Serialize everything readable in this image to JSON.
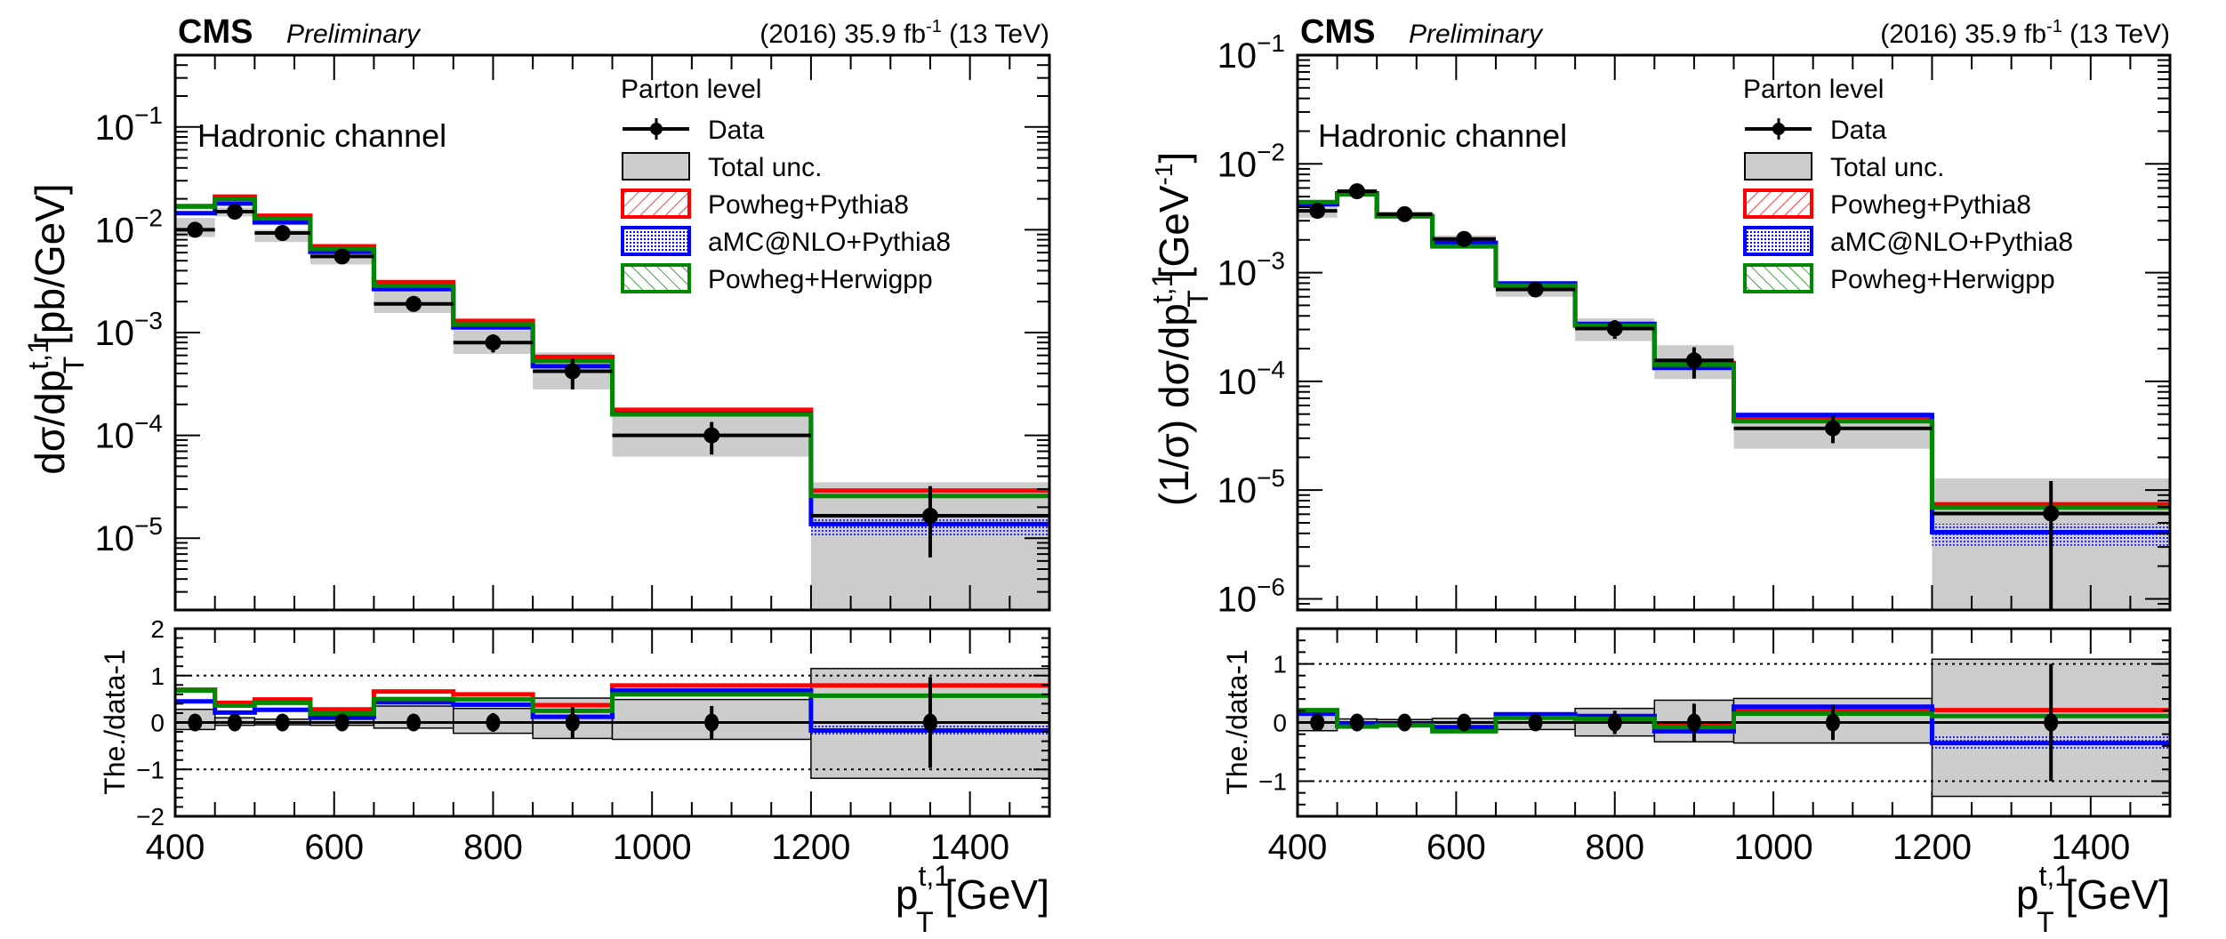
{
  "header": {
    "experiment": "CMS",
    "status": "Preliminary",
    "lumi_prefix": "(2016) 35.9 fb",
    "lumi_exponent": "-1",
    "lumi_suffix": " (13 TeV)"
  },
  "colors": {
    "data": "#000000",
    "total_unc": "#cccccc",
    "powheg_pythia8": "#ff0000",
    "amcnlo_pythia8": "#0000ff",
    "powheg_herwigpp": "#008800"
  },
  "legend": {
    "title": "Parton level",
    "entries": [
      {
        "key": "data",
        "label": "Data"
      },
      {
        "key": "total_unc",
        "label": "Total unc."
      },
      {
        "key": "powheg_pythia8",
        "label": "Powheg+Pythia8"
      },
      {
        "key": "amcnlo_pythia8",
        "label": "aMC@NLO+Pythia8"
      },
      {
        "key": "powheg_herwigpp",
        "label": "Powheg+Herwigpp"
      }
    ]
  },
  "chart_data": [
    {
      "type": "line",
      "id": "absolute",
      "annotation": "Hadronic channel",
      "xlabel": "p_T^{t,1} [GeV]",
      "xlabel_main": "p",
      "xlabel_sup": "t,1",
      "xlabel_sub": "T",
      "xlabel_unit": " [GeV]",
      "ylabel_main": "dσ/dp",
      "ylabel_sup": "t,1",
      "ylabel_sub": "T",
      "ylabel_unit": " [pb/GeV]",
      "ylabel_unit_sup": "",
      "ylabel_unit_tail": "",
      "xlim": [
        400,
        1500
      ],
      "x_ticks": [
        400,
        600,
        800,
        1000,
        1200,
        1400
      ],
      "y_scale": "log",
      "ylim": [
        2e-06,
        0.5
      ],
      "y_ticks": [
        {
          "exp": -1
        },
        {
          "exp": -2
        },
        {
          "exp": -3
        },
        {
          "exp": -4
        },
        {
          "exp": -5
        }
      ],
      "bin_edges": [
        400,
        450,
        500,
        570,
        650,
        750,
        850,
        950,
        1200,
        1500
      ],
      "data": {
        "values": [
          0.01,
          0.015,
          0.0093,
          0.0055,
          0.0019,
          0.0008,
          0.00042,
          0.0001,
          1.65e-05
        ],
        "err_low": [
          0.001,
          0.0015,
          0.0009,
          0.0005,
          0.00015,
          0.00016,
          0.00014,
          3.5e-05,
          1e-05
        ],
        "err_high": [
          0.001,
          0.0015,
          0.0009,
          0.0005,
          0.00015,
          0.00016,
          0.00014,
          3.5e-05,
          1.55e-05
        ],
        "band_low": [
          0.0085,
          0.0135,
          0.0076,
          0.0046,
          0.00155,
          0.00062,
          0.00028,
          6.2e-05,
          2e-06
        ],
        "band_high": [
          0.013,
          0.0165,
          0.01,
          0.006,
          0.0026,
          0.00105,
          0.00064,
          0.000155,
          3.5e-05
        ]
      },
      "series": [
        {
          "key": "powheg_pythia8",
          "name": "Powheg+Pythia8",
          "values": [
            0.017,
            0.021,
            0.0137,
            0.0069,
            0.0031,
            0.0013,
            0.00058,
            0.000177,
            2.9e-05
          ]
        },
        {
          "key": "amcnlo_pythia8",
          "name": "aMC@NLO+Pythia8",
          "values": [
            0.0145,
            0.018,
            0.0118,
            0.0061,
            0.00265,
            0.00112,
            0.00047,
            0.000162,
            1.37e-05
          ]
        },
        {
          "key": "powheg_herwigpp",
          "name": "Powheg+Herwigpp",
          "values": [
            0.0168,
            0.02,
            0.0129,
            0.0065,
            0.00285,
            0.0012,
            0.00053,
            0.00016,
            2.57e-05
          ]
        }
      ],
      "ratio": {
        "ylabel": "The./data-1",
        "ylim": [
          -2,
          2
        ],
        "y_ticks": [
          2,
          1,
          0,
          -1,
          -2
        ],
        "y_tick_labels": [
          "2",
          "1",
          "0",
          "−1",
          "−2"
        ],
        "reference_lines": [
          1,
          -1
        ],
        "data_err": [
          0.1,
          0.1,
          0.1,
          0.09,
          0.08,
          0.2,
          0.33,
          0.35,
          0.97
        ],
        "band_high": [
          0.28,
          0.1,
          0.07,
          0.07,
          0.35,
          0.3,
          0.52,
          0.49,
          1.15
        ],
        "band_low": [
          -0.15,
          -0.06,
          -0.05,
          -0.06,
          -0.12,
          -0.23,
          -0.34,
          -0.36,
          -1.19
        ],
        "series": [
          {
            "key": "powheg_pythia8",
            "values": [
              0.7,
              0.42,
              0.49,
              0.28,
              0.66,
              0.6,
              0.37,
              0.79,
              0.79
            ]
          },
          {
            "key": "amcnlo_pythia8",
            "values": [
              0.45,
              0.21,
              0.27,
              0.12,
              0.43,
              0.38,
              0.12,
              0.68,
              -0.17
            ]
          },
          {
            "key": "powheg_herwigpp",
            "values": [
              0.68,
              0.36,
              0.42,
              0.19,
              0.5,
              0.49,
              0.25,
              0.6,
              0.57
            ]
          }
        ]
      }
    },
    {
      "type": "line",
      "id": "normalized",
      "annotation": "Hadronic channel",
      "xlabel": "p_T^{t,1} [GeV]",
      "xlabel_main": "p",
      "xlabel_sup": "t,1",
      "xlabel_sub": "T",
      "xlabel_unit": " [GeV]",
      "ylabel_main": "(1/σ) dσ/dp",
      "ylabel_sup": "t,1",
      "ylabel_sub": "T",
      "ylabel_unit": " [GeV",
      "ylabel_unit_sup": "-1",
      "ylabel_unit_tail": "]",
      "xlim": [
        400,
        1500
      ],
      "x_ticks": [
        400,
        600,
        800,
        1000,
        1200,
        1400
      ],
      "y_scale": "log",
      "ylim": [
        7.9e-07,
        0.1
      ],
      "y_ticks": [
        {
          "exp": -1
        },
        {
          "exp": -2
        },
        {
          "exp": -3
        },
        {
          "exp": -4
        },
        {
          "exp": -5
        },
        {
          "exp": -6
        }
      ],
      "bin_edges": [
        400,
        450,
        500,
        570,
        650,
        750,
        850,
        950,
        1200,
        1500
      ],
      "data": {
        "values": [
          0.0037,
          0.0056,
          0.00345,
          0.00204,
          0.0007,
          0.000306,
          0.000156,
          3.7e-05,
          6.1e-06
        ],
        "err_low": [
          0.0003,
          0.0003,
          0.00015,
          0.0001,
          4e-05,
          6e-05,
          5e-05,
          1e-05,
          5.5e-06
        ],
        "err_high": [
          0.0003,
          0.0003,
          0.00015,
          0.0001,
          4e-05,
          6e-05,
          5e-05,
          1.1e-05,
          6e-06
        ],
        "band_low": [
          0.0032,
          0.0053,
          0.00325,
          0.0019,
          0.0006,
          0.000235,
          0.000105,
          2.4e-05,
          7.9e-07
        ],
        "band_high": [
          0.0042,
          0.0059,
          0.00365,
          0.0022,
          0.00079,
          0.00038,
          0.000215,
          5.2e-05,
          1.28e-05
        ]
      },
      "series": [
        {
          "key": "powheg_pythia8",
          "name": "Powheg+Pythia8",
          "values": [
            0.00435,
            0.0053,
            0.0033,
            0.00183,
            0.000785,
            0.00033,
            0.000147,
            4.6e-05,
            7.4e-06
          ]
        },
        {
          "key": "amcnlo_pythia8",
          "name": "aMC@NLO+Pythia8",
          "values": [
            0.00425,
            0.00535,
            0.0033,
            0.00188,
            0.000795,
            0.000338,
            0.000133,
            4.9e-05,
            4.1e-06
          ]
        },
        {
          "key": "powheg_herwigpp",
          "name": "Powheg+Herwigpp",
          "values": [
            0.00445,
            0.00525,
            0.0033,
            0.00174,
            0.00076,
            0.000325,
            0.000142,
            4.3e-05,
            6.9e-06
          ]
        }
      ],
      "ratio": {
        "ylabel": "The./data-1",
        "ylim": [
          -1.6,
          1.6
        ],
        "y_ticks": [
          1,
          0,
          -1
        ],
        "y_tick_labels": [
          "1",
          "0",
          "−1"
        ],
        "reference_lines": [
          1,
          -1
        ],
        "data_err": [
          0.08,
          0.05,
          0.05,
          0.05,
          0.06,
          0.2,
          0.32,
          0.3,
          1.0
        ],
        "band_high": [
          0.13,
          0.06,
          0.05,
          0.07,
          0.12,
          0.24,
          0.38,
          0.41,
          1.08
        ],
        "band_low": [
          -0.14,
          -0.06,
          -0.05,
          -0.07,
          -0.12,
          -0.23,
          -0.33,
          -0.35,
          -1.26
        ],
        "series": [
          {
            "key": "powheg_pythia8",
            "values": [
              0.17,
              -0.05,
              -0.04,
              -0.1,
              0.12,
              0.09,
              -0.06,
              0.21,
              0.21
            ]
          },
          {
            "key": "amcnlo_pythia8",
            "values": [
              0.15,
              -0.03,
              -0.04,
              -0.08,
              0.14,
              0.11,
              -0.15,
              0.27,
              -0.35
            ]
          },
          {
            "key": "powheg_herwigpp",
            "values": [
              0.21,
              -0.07,
              -0.05,
              -0.15,
              0.08,
              0.06,
              -0.08,
              0.15,
              0.11
            ]
          }
        ]
      }
    }
  ]
}
